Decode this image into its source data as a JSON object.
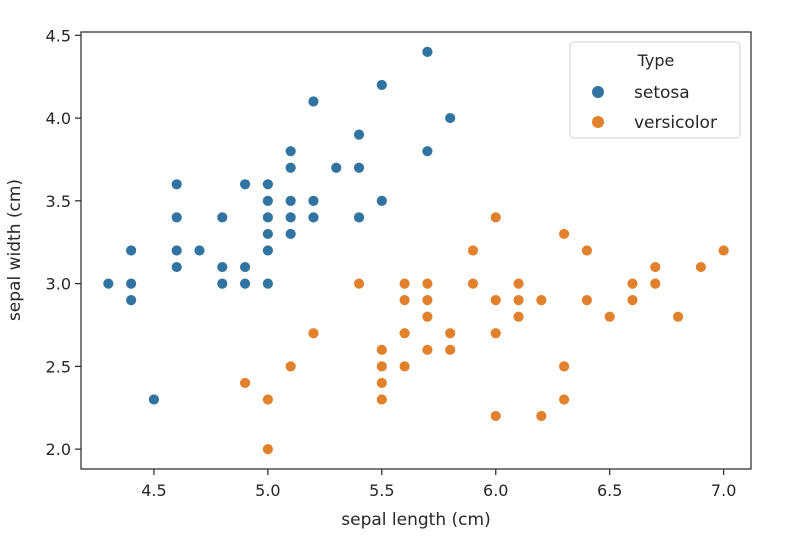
{
  "chart_data": {
    "type": "scatter",
    "xlabel": "sepal length (cm)",
    "ylabel": "sepal width (cm)",
    "xlim": [
      4.18,
      7.12
    ],
    "ylim": [
      1.88,
      4.52
    ],
    "xticks": [
      4.5,
      5.0,
      5.5,
      6.0,
      6.5,
      7.0
    ],
    "yticks": [
      2.0,
      2.5,
      3.0,
      3.5,
      4.0,
      4.5
    ],
    "tick_decimals": 1,
    "grid": false,
    "legend": {
      "title": "Type",
      "placement": "top-right"
    },
    "series": [
      {
        "name": "setosa",
        "color": "#3274a1",
        "points": [
          [
            4.3,
            3.0
          ],
          [
            4.4,
            3.2
          ],
          [
            4.4,
            3.0
          ],
          [
            4.4,
            2.9
          ],
          [
            4.5,
            2.3
          ],
          [
            4.6,
            3.6
          ],
          [
            4.6,
            3.4
          ],
          [
            4.6,
            3.2
          ],
          [
            4.6,
            3.1
          ],
          [
            4.7,
            3.2
          ],
          [
            4.8,
            3.4
          ],
          [
            4.8,
            3.1
          ],
          [
            4.8,
            3.0
          ],
          [
            4.9,
            3.6
          ],
          [
            4.9,
            3.1
          ],
          [
            4.9,
            3.0
          ],
          [
            5.0,
            3.6
          ],
          [
            5.0,
            3.5
          ],
          [
            5.0,
            3.4
          ],
          [
            5.0,
            3.3
          ],
          [
            5.0,
            3.2
          ],
          [
            5.0,
            3.0
          ],
          [
            5.1,
            3.8
          ],
          [
            5.1,
            3.7
          ],
          [
            5.1,
            3.5
          ],
          [
            5.1,
            3.4
          ],
          [
            5.1,
            3.3
          ],
          [
            5.2,
            4.1
          ],
          [
            5.2,
            3.5
          ],
          [
            5.2,
            3.4
          ],
          [
            5.3,
            3.7
          ],
          [
            5.4,
            3.9
          ],
          [
            5.4,
            3.7
          ],
          [
            5.4,
            3.4
          ],
          [
            5.5,
            4.2
          ],
          [
            5.5,
            3.5
          ],
          [
            5.7,
            4.4
          ],
          [
            5.7,
            3.8
          ],
          [
            5.8,
            4.0
          ]
        ]
      },
      {
        "name": "versicolor",
        "color": "#e1812c",
        "points": [
          [
            4.9,
            2.4
          ],
          [
            5.0,
            2.3
          ],
          [
            5.0,
            2.0
          ],
          [
            5.1,
            2.5
          ],
          [
            5.2,
            2.7
          ],
          [
            5.4,
            3.0
          ],
          [
            5.5,
            2.6
          ],
          [
            5.5,
            2.5
          ],
          [
            5.5,
            2.4
          ],
          [
            5.5,
            2.3
          ],
          [
            5.6,
            3.0
          ],
          [
            5.6,
            2.9
          ],
          [
            5.6,
            2.7
          ],
          [
            5.6,
            2.5
          ],
          [
            5.7,
            3.0
          ],
          [
            5.7,
            2.9
          ],
          [
            5.7,
            2.8
          ],
          [
            5.7,
            2.6
          ],
          [
            5.8,
            2.7
          ],
          [
            5.8,
            2.6
          ],
          [
            5.9,
            3.2
          ],
          [
            5.9,
            3.0
          ],
          [
            6.0,
            3.4
          ],
          [
            6.0,
            2.9
          ],
          [
            6.0,
            2.7
          ],
          [
            6.0,
            2.2
          ],
          [
            6.1,
            3.0
          ],
          [
            6.1,
            2.9
          ],
          [
            6.1,
            2.8
          ],
          [
            6.2,
            2.9
          ],
          [
            6.2,
            2.2
          ],
          [
            6.3,
            3.3
          ],
          [
            6.3,
            2.5
          ],
          [
            6.3,
            2.3
          ],
          [
            6.4,
            3.2
          ],
          [
            6.4,
            2.9
          ],
          [
            6.5,
            2.8
          ],
          [
            6.6,
            3.0
          ],
          [
            6.6,
            2.9
          ],
          [
            6.7,
            3.1
          ],
          [
            6.7,
            3.0
          ],
          [
            6.8,
            2.8
          ],
          [
            6.9,
            3.1
          ],
          [
            7.0,
            3.2
          ]
        ]
      }
    ]
  }
}
